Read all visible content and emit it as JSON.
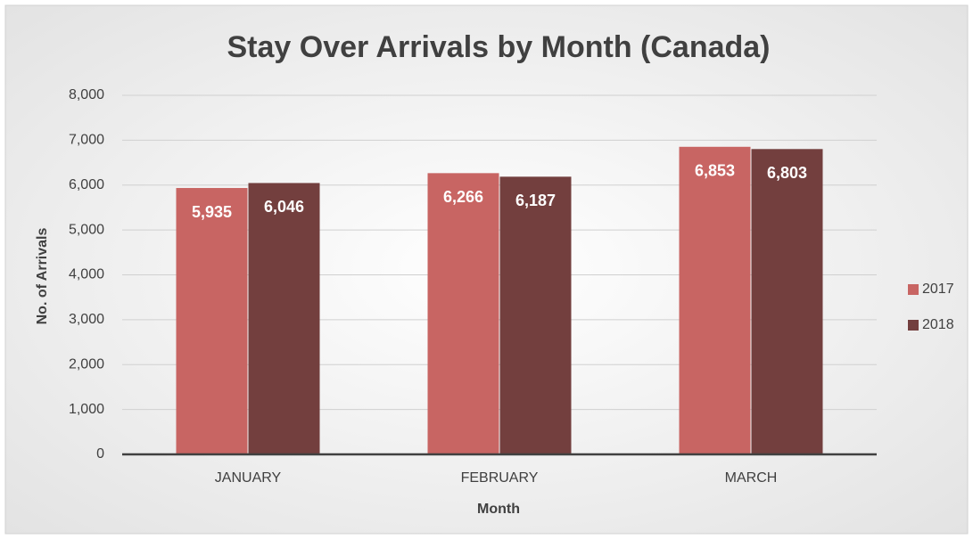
{
  "chart_data": {
    "type": "bar",
    "title": "Stay Over Arrivals by Month (Canada)",
    "x_label": "Month",
    "y_label": "No. of Arrivals",
    "categories": [
      "JANUARY",
      "FEBRUARY",
      "MARCH"
    ],
    "series": [
      {
        "name": "2017",
        "color": "#c86563",
        "values": [
          5935,
          6266,
          6853
        ],
        "value_labels": [
          "5,935",
          "6,266",
          "6,853"
        ]
      },
      {
        "name": "2018",
        "color": "#733f3e",
        "values": [
          6046,
          6187,
          6803
        ],
        "value_labels": [
          "6,046",
          "6,187",
          "6,803"
        ]
      }
    ],
    "ylim": [
      0,
      8000
    ],
    "yticks": [
      0,
      {
        "value": 1000,
        "label": "1,000"
      },
      {
        "value": 2000,
        "label": "2,000"
      },
      {
        "value": 3000,
        "label": "3,000"
      },
      {
        "value": 4000,
        "label": "4,000"
      },
      {
        "value": 5000,
        "label": "5,000"
      },
      {
        "value": 6000,
        "label": "6,000"
      },
      {
        "value": 7000,
        "label": "7,000"
      },
      {
        "value": 8000,
        "label": "8,000"
      }
    ],
    "grid": true,
    "legend": "right"
  }
}
